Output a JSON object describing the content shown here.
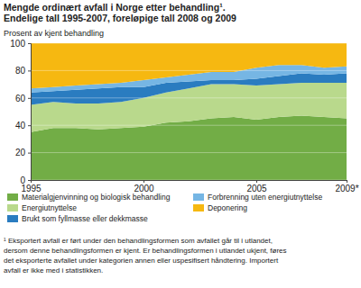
{
  "chart_data": {
    "type": "area",
    "stacked": true,
    "title": "Mengde ordinært avfall i Norge etter behandling¹.",
    "subtitle": "Endelige tall 1995-2007, foreløpige tall 2008 og 2009",
    "ylabel": "Prosent av kjent behandling",
    "x": [
      1995,
      1996,
      1997,
      1998,
      1999,
      2000,
      2001,
      2002,
      2003,
      2004,
      2005,
      2006,
      2007,
      2008,
      2009
    ],
    "xlim": [
      1995,
      2009
    ],
    "xticks": [
      1995,
      2000,
      2005,
      {
        "value": 2009,
        "label": "2009*"
      }
    ],
    "ylim": [
      0,
      100
    ],
    "yticks": [
      0,
      20,
      40,
      60,
      80,
      100
    ],
    "grid": true,
    "series": [
      {
        "name": "Materialgjenvinning og biologisk behandling",
        "color": "#72ad46",
        "values": [
          35,
          38,
          38,
          37,
          38,
          39,
          42,
          43,
          45,
          46,
          44,
          46,
          47,
          46,
          45
        ]
      },
      {
        "name": "Energiutnyttelse",
        "color": "#b9d98c",
        "values": [
          20,
          19,
          18,
          19,
          19,
          21,
          22,
          24,
          25,
          24,
          25,
          24,
          24,
          25,
          26
        ]
      },
      {
        "name": "Brukt som fyllmasse eller dekkmasse",
        "color": "#2a7cc0",
        "values": [
          9,
          8,
          10,
          11,
          11,
          8,
          7,
          5,
          3,
          3,
          5,
          6,
          7,
          6,
          7
        ]
      },
      {
        "name": "Forbrenning uten energiutnyttelse",
        "color": "#76b6e4",
        "values": [
          3,
          3,
          3,
          3,
          3,
          5,
          4,
          5,
          6,
          6,
          8,
          8,
          6,
          5,
          5
        ]
      },
      {
        "name": "Deponering",
        "color": "#f6b811",
        "values": [
          33,
          32,
          31,
          30,
          29,
          27,
          25,
          23,
          21,
          21,
          18,
          16,
          16,
          18,
          17
        ]
      }
    ],
    "footnote": [
      "¹ Eksportert avfall er ført under den behandlingsformen som avfallet går til i utlandet,",
      "dersom denne behandlingsformen er kjent. Er behandlingsformen i utlandet ukjent, føres",
      "det eksporterte avfallet under kategorien annen eller uspesifisert håndtering. Importert",
      "avfall er ikke med i statistikken."
    ]
  }
}
